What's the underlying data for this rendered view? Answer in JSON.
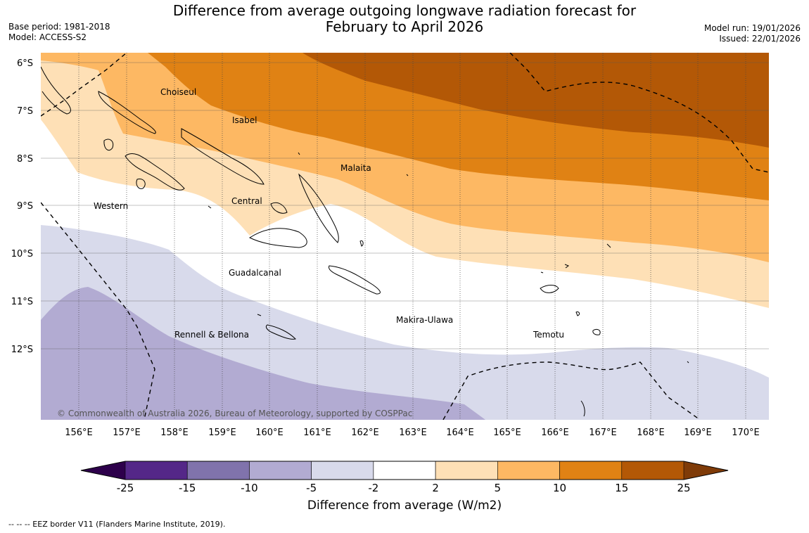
{
  "header": {
    "title_line1": "Difference from average outgoing longwave radiation forecast for",
    "title_line2": "February to April 2026",
    "base_period": "Base period: 1981-2018",
    "model": "Model: ACCESS-S2",
    "model_run": "Model run: 19/01/2026",
    "issued": "Issued: 22/01/2026"
  },
  "map": {
    "lat_labels": [
      "6°S",
      "7°S",
      "8°S",
      "9°S",
      "10°S",
      "11°S",
      "12°S"
    ],
    "lon_labels": [
      "156°E",
      "157°E",
      "158°E",
      "159°E",
      "160°E",
      "161°E",
      "162°E",
      "163°E",
      "164°E",
      "165°E",
      "166°E",
      "167°E",
      "168°E",
      "169°E",
      "170°E"
    ],
    "region_labels": [
      "Choiseul",
      "Isabel",
      "Malaita",
      "Western",
      "Central",
      "Guadalcanal",
      "Makira-Ulawa",
      "Rennell & Bellona",
      "Temotu"
    ],
    "copyright": "© Commonwealth of Australia 2026, Bureau of Meteorology, supported by COSPPac"
  },
  "colorbar": {
    "ticks": [
      "-25",
      "-15",
      "-10",
      "-5",
      "-2",
      "2",
      "5",
      "10",
      "15",
      "25"
    ],
    "colors": [
      "#542788",
      "#8073ac",
      "#b2abd2",
      "#d8daeb",
      "#ffffff",
      "#fee0b6",
      "#fdb863",
      "#e08214",
      "#b35806"
    ],
    "min_color": "#2d004b",
    "max_color": "#7f3b08",
    "title": "Difference from average (W/m2)"
  },
  "legend_note": "--  --  -- EEZ border V11 (Flanders Marine Institute, 2019)."
}
